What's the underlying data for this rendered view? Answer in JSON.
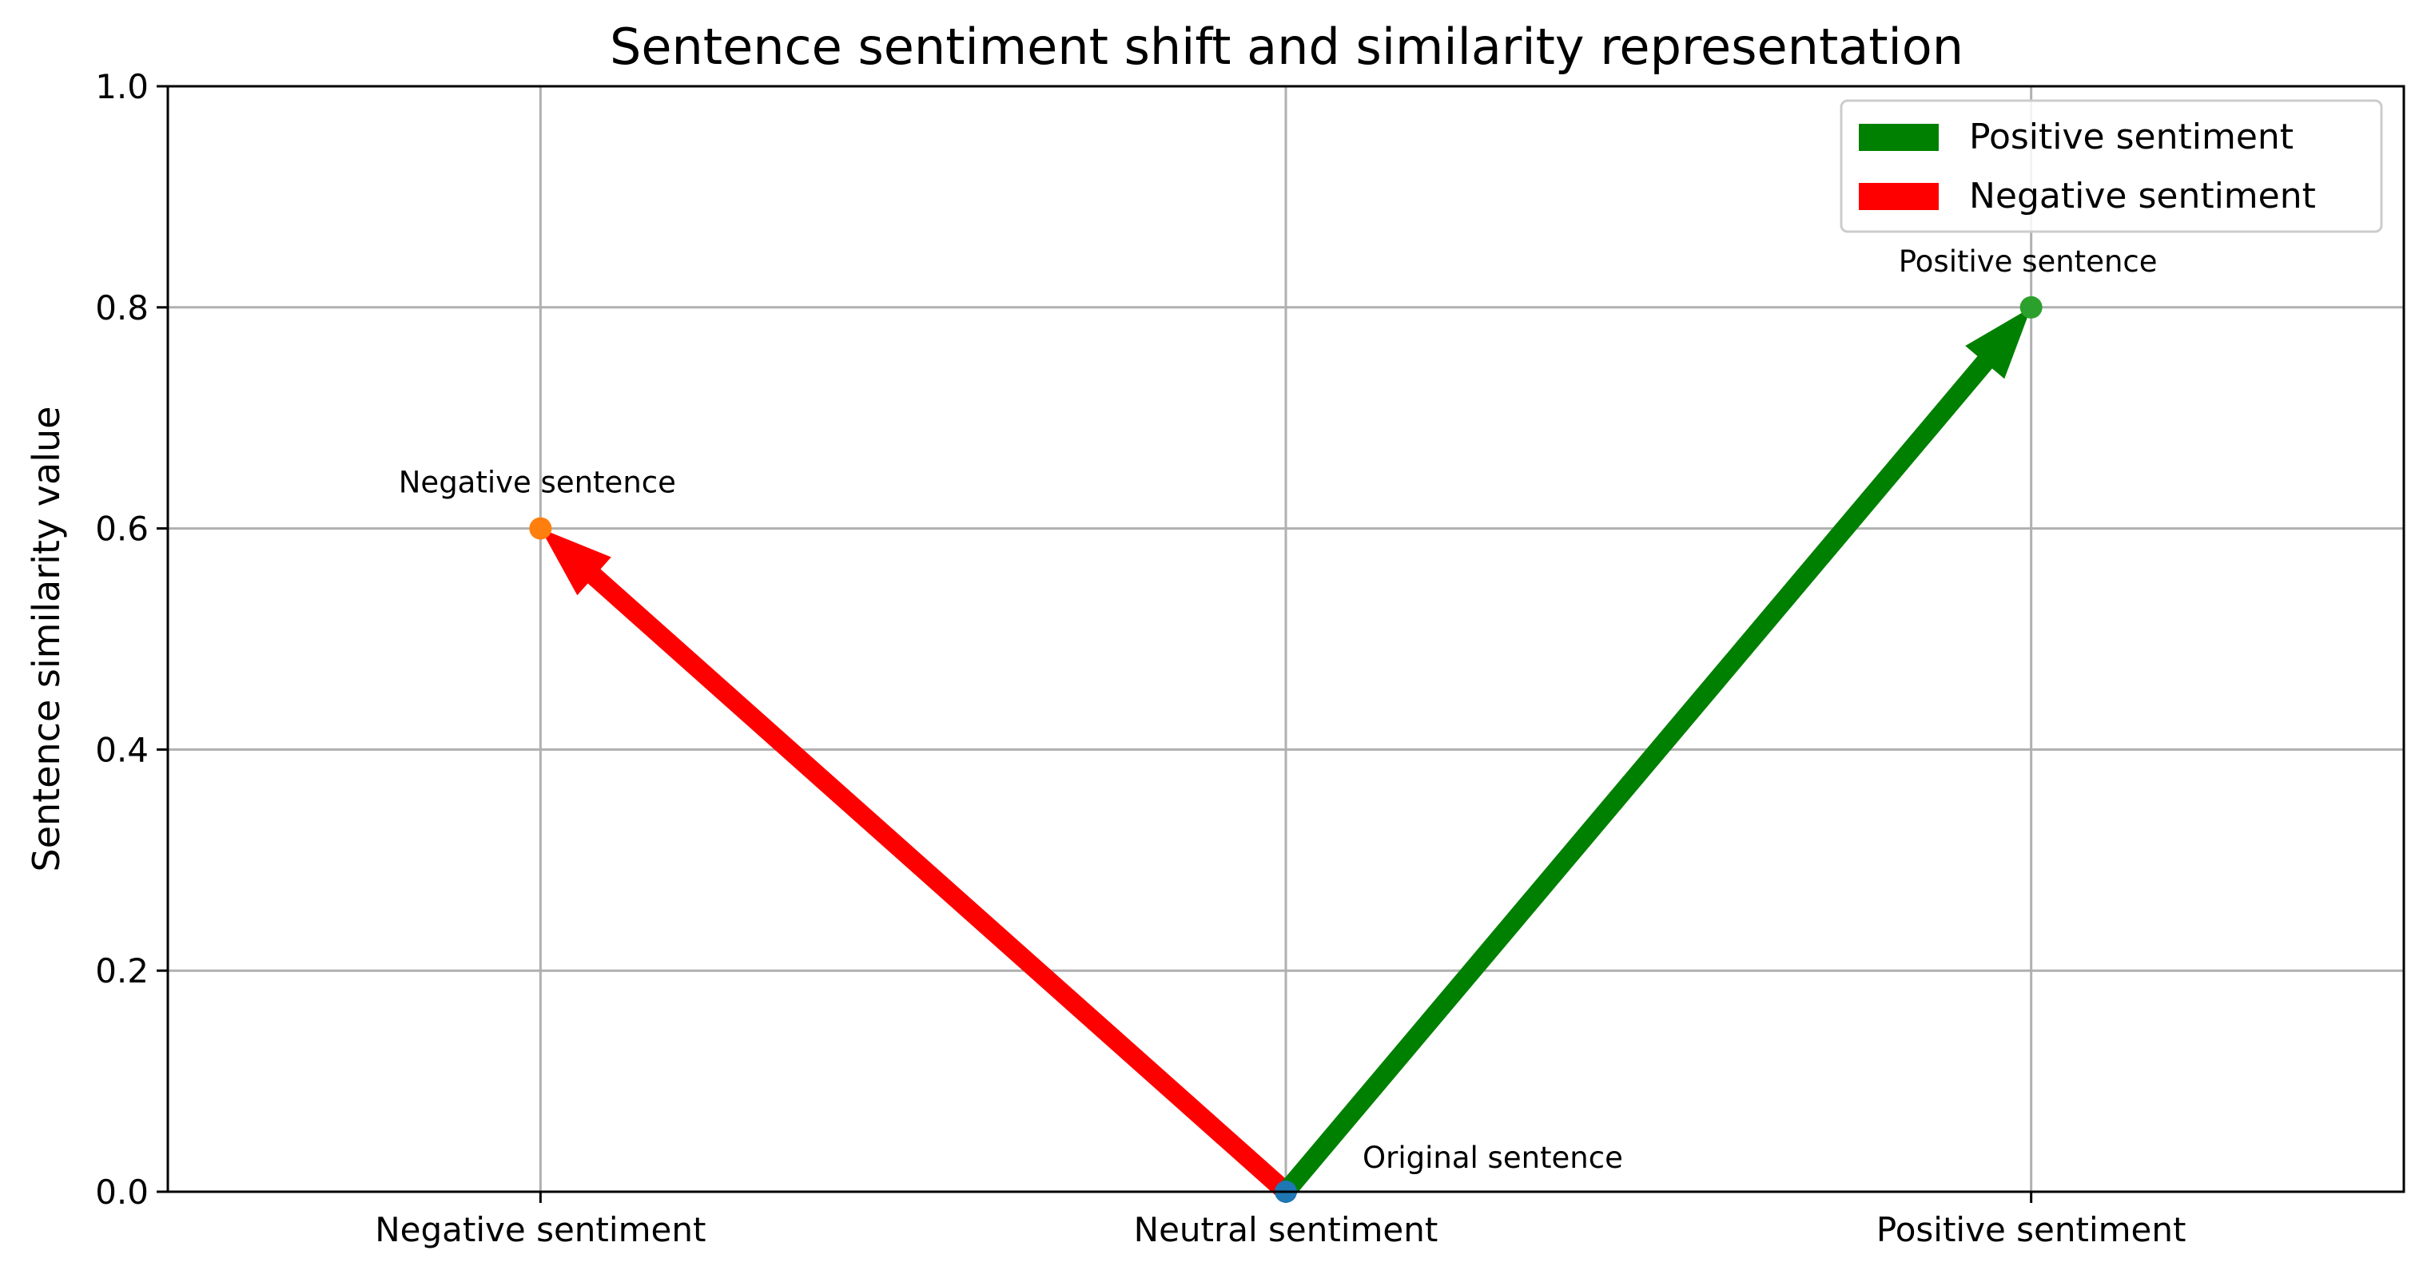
{
  "chart_data": {
    "type": "scatter",
    "title": "Sentence sentiment shift and similarity representation",
    "xlabel": "",
    "ylabel": "Sentence similarity value",
    "categories": [
      "Negative sentiment",
      "Neutral sentiment",
      "Positive sentiment"
    ],
    "xlim": [
      -0.5,
      2.5
    ],
    "ylim": [
      0,
      1
    ],
    "yticks": [
      0.0,
      0.2,
      0.4,
      0.6,
      0.8,
      1.0
    ],
    "ytick_labels": [
      "0.0",
      "0.2",
      "0.4",
      "0.6",
      "0.8",
      "1.0"
    ],
    "grid": true,
    "legend_position": "top-right",
    "points": [
      {
        "x": 1,
        "y": 0.0,
        "label": "Original sentence",
        "color": "#1f77b4"
      },
      {
        "x": 0,
        "y": 0.6,
        "label": "Negative sentence",
        "color": "#ff7f0e"
      },
      {
        "x": 2,
        "y": 0.8,
        "label": "Positive sentence",
        "color": "#2ca02c"
      }
    ],
    "arrows": [
      {
        "name": "Positive sentiment",
        "from": [
          1,
          0.0
        ],
        "to": [
          2,
          0.8
        ],
        "color": "#008000"
      },
      {
        "name": "Negative sentiment",
        "from": [
          1,
          0.0
        ],
        "to": [
          0,
          0.6
        ],
        "color": "#ff0000"
      }
    ]
  }
}
